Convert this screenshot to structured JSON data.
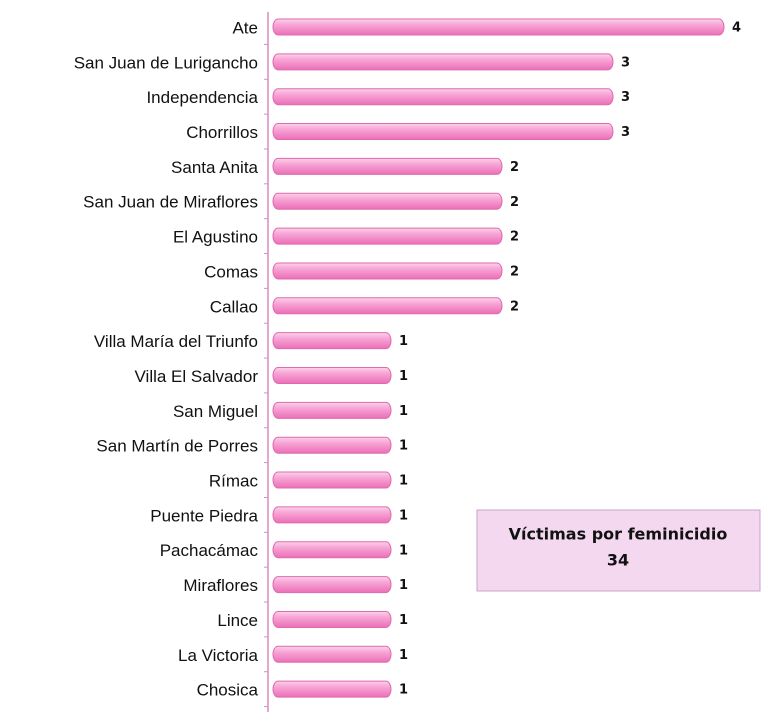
{
  "chart_data": {
    "type": "barh",
    "categories": [
      "Ate",
      "San Juan de Lurigancho",
      "Independencia",
      "Chorrillos",
      "Santa Anita",
      "San Juan de Miraflores",
      "El Agustino",
      "Comas",
      "Callao",
      "Villa María del Triunfo",
      "Villa El Salvador",
      "San Miguel",
      "San Martín de Porres",
      "Rímac",
      "Puente Piedra",
      "Pachacámac",
      "Miraflores",
      "Lince",
      "La Victoria",
      "Chosica"
    ],
    "values": [
      4,
      3,
      3,
      3,
      2,
      2,
      2,
      2,
      2,
      1,
      1,
      1,
      1,
      1,
      1,
      1,
      1,
      1,
      1,
      1
    ],
    "color": "#f58cc9",
    "xlim": [
      0,
      4
    ],
    "annotation": {
      "title": "Víctimas por feminicidio",
      "value": 34
    }
  }
}
